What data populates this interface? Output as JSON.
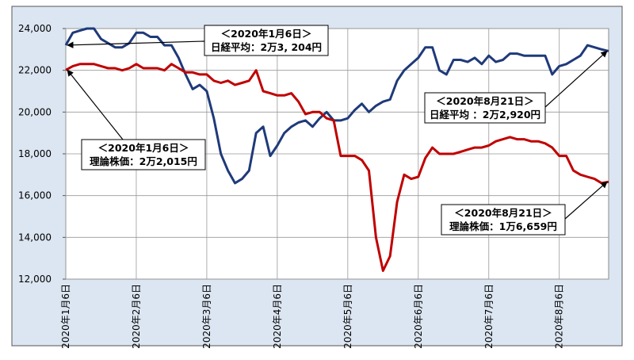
{
  "chart_data": {
    "type": "line",
    "categories": [
      "2020年1月6日",
      null,
      null,
      null,
      null,
      null,
      null,
      null,
      null,
      null,
      "2020年2月6日",
      null,
      null,
      null,
      null,
      null,
      null,
      null,
      null,
      null,
      "2020年3月6日",
      null,
      null,
      null,
      null,
      null,
      null,
      null,
      null,
      null,
      "2020年4月6日",
      null,
      null,
      null,
      null,
      null,
      null,
      null,
      null,
      null,
      "2020年5月6日",
      null,
      null,
      null,
      null,
      null,
      null,
      null,
      null,
      null,
      "2020年6月6日",
      null,
      null,
      null,
      null,
      null,
      null,
      null,
      null,
      null,
      "2020年7月6日",
      null,
      null,
      null,
      null,
      null,
      null,
      null,
      null,
      null,
      "2020年8月6日",
      null,
      null,
      null,
      null,
      null,
      null,
      null
    ],
    "series": [
      {
        "color": "#1f3a7a",
        "values": [
          23204,
          23800,
          23900,
          24000,
          24000,
          23500,
          23300,
          23100,
          23100,
          23300,
          23800,
          23800,
          23600,
          23600,
          23200,
          23200,
          22600,
          21800,
          21100,
          21300,
          21000,
          19700,
          18000,
          17200,
          16600,
          16800,
          17200,
          19000,
          19300,
          17900,
          18400,
          19000,
          19300,
          19500,
          19600,
          19300,
          19700,
          20000,
          19600,
          19600,
          19700,
          20100,
          20400,
          20000,
          20300,
          20500,
          20600,
          21500,
          22000,
          22300,
          22600,
          23100,
          23100,
          22000,
          21800,
          22500,
          22500,
          22400,
          22600,
          22300,
          22700,
          22400,
          22500,
          22800,
          22800,
          22700,
          22700,
          22700,
          22700,
          21800,
          22200,
          22300,
          22500,
          22700,
          23200,
          23100,
          23000,
          22920
        ]
      },
      {
        "color": "#c00000",
        "values": [
          22015,
          22200,
          22300,
          22300,
          22300,
          22200,
          22100,
          22100,
          22000,
          22100,
          22300,
          22100,
          22100,
          22100,
          22000,
          22300,
          22100,
          21900,
          21900,
          21800,
          21800,
          21500,
          21400,
          21500,
          21300,
          21400,
          21500,
          22000,
          21000,
          20900,
          20800,
          20800,
          20900,
          20500,
          19900,
          20000,
          20000,
          19700,
          19600,
          17900,
          17900,
          17900,
          17700,
          17200,
          14000,
          12400,
          13100,
          15700,
          17000,
          16800,
          16900,
          17800,
          18300,
          18000,
          18000,
          18000,
          18100,
          18200,
          18300,
          18300,
          18400,
          18600,
          18700,
          18800,
          18700,
          18700,
          18600,
          18600,
          18500,
          18300,
          17900,
          17900,
          17200,
          17000,
          16900,
          16800,
          16600,
          16659
        ]
      }
    ],
    "ylim": [
      12000,
      24000
    ],
    "yticks": [
      {
        "value": 12000,
        "label": "12,000"
      },
      {
        "value": 14000,
        "label": "14,000"
      },
      {
        "value": 16000,
        "label": "16,000"
      },
      {
        "value": 18000,
        "label": "18,000"
      },
      {
        "value": 20000,
        "label": "20,000"
      },
      {
        "value": 22000,
        "label": "22,000"
      },
      {
        "value": 24000,
        "label": "24,000"
      }
    ],
    "grid": true,
    "annotations": [
      {
        "lines": [
          "＜2020年1月6日＞",
          "日経平均：2万3, 204円"
        ]
      },
      {
        "lines": [
          "＜2020年8月21日＞",
          "日経平均 ：2万2,920円"
        ]
      },
      {
        "lines": [
          "＜2020年1月6日＞",
          "理論株価：2万2,015円"
        ]
      },
      {
        "lines": [
          "＜2020年8月21日＞",
          "理論株価：1万6,659円"
        ]
      }
    ]
  }
}
